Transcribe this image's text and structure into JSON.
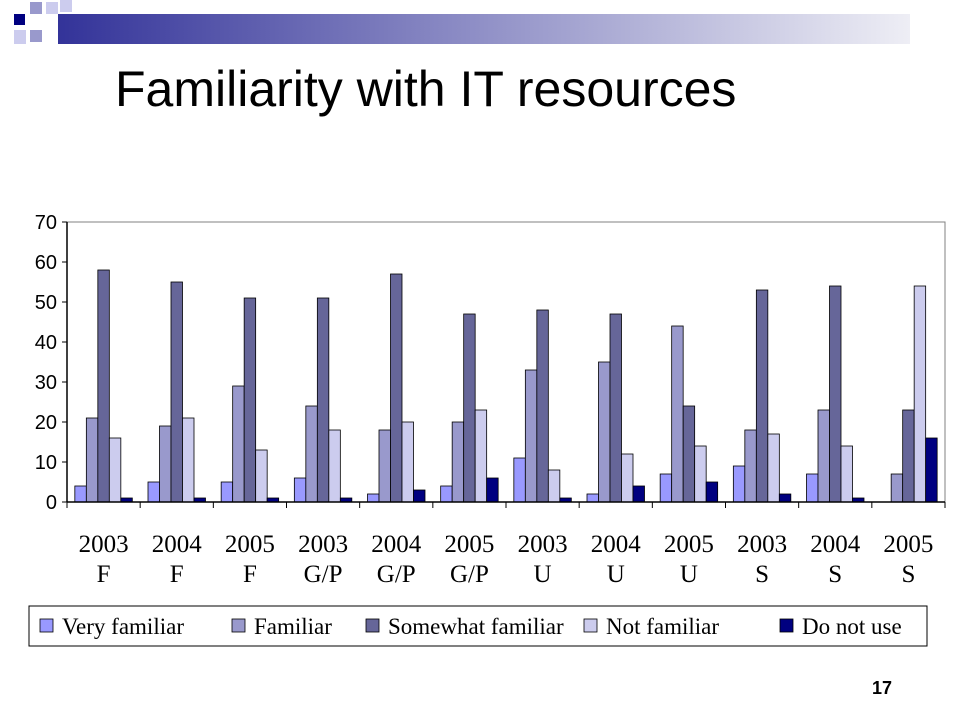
{
  "slide": {
    "title": "Familiarity with IT resources",
    "page_number": "17"
  },
  "colors": {
    "title_bar_dark": "#333399",
    "title_bar_light": "#eeeef5",
    "accent_square_dark": "#000080",
    "accent_square_light": "#9999cc"
  },
  "chart_data": {
    "type": "bar",
    "categories": [
      [
        "2003",
        "F"
      ],
      [
        "2004",
        "F"
      ],
      [
        "2005",
        "F"
      ],
      [
        "2003",
        "G/P"
      ],
      [
        "2004",
        "G/P"
      ],
      [
        "2005",
        "G/P"
      ],
      [
        "2003",
        "U"
      ],
      [
        "2004",
        "U"
      ],
      [
        "2005",
        "U"
      ],
      [
        "2003",
        "S"
      ],
      [
        "2004",
        "S"
      ],
      [
        "2005",
        "S"
      ]
    ],
    "series": [
      {
        "name": "Very familiar",
        "color": "#9999ff",
        "values": [
          4,
          5,
          5,
          6,
          2,
          4,
          11,
          2,
          7,
          9,
          7,
          0
        ]
      },
      {
        "name": "Familiar",
        "color": "#9999cc",
        "values": [
          21,
          19,
          29,
          24,
          18,
          20,
          33,
          35,
          44,
          18,
          23,
          7
        ]
      },
      {
        "name": "Somewhat familiar",
        "color": "#666699",
        "values": [
          58,
          55,
          51,
          51,
          57,
          47,
          48,
          47,
          24,
          53,
          54,
          23
        ]
      },
      {
        "name": "Not familiar",
        "color": "#ccccee",
        "values": [
          16,
          21,
          13,
          18,
          20,
          23,
          8,
          12,
          14,
          17,
          14,
          54
        ]
      },
      {
        "name": "Do not use",
        "color": "#000080",
        "values": [
          1,
          1,
          1,
          1,
          3,
          6,
          1,
          4,
          5,
          2,
          1,
          16
        ]
      }
    ],
    "ylim": [
      0,
      70
    ],
    "yticks": [
      0,
      10,
      20,
      30,
      40,
      50,
      60,
      70
    ],
    "grid": false,
    "legend_position": "bottom"
  }
}
